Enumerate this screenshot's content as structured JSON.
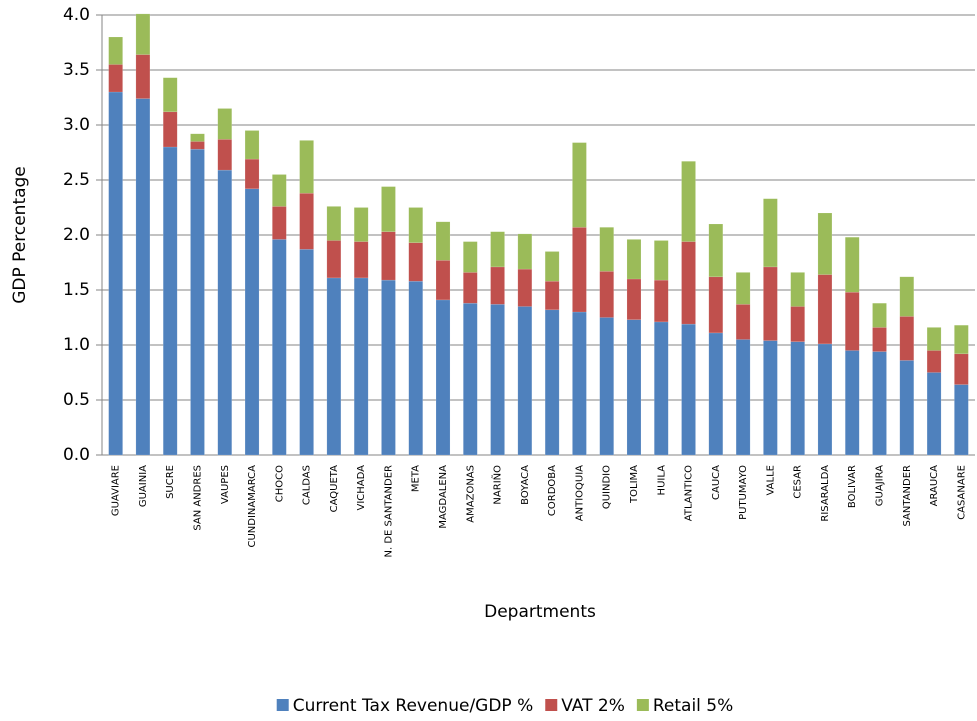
{
  "chart_data": {
    "type": "stacked_bar",
    "x_label": "Departments",
    "y_label": "GDP Percentage",
    "categories": [
      "GUAVIARE",
      "GUAINIA",
      "SUCRE",
      "SAN ANDRES",
      "VAUPES",
      "CUNDINAMARCA",
      "CHOCO",
      "CALDAS",
      "CAQUETA",
      "VICHADA",
      "N. DE SANTANDER",
      "META",
      "MAGDALENA",
      "AMAZONAS",
      "NARIÑO",
      "BOYACA",
      "CORDOBA",
      "ANTIOQUIA",
      "QUINDIO",
      "TOLIMA",
      "HUILA",
      "ATLANTICO",
      "CAUCA",
      "PUTUMAYO",
      "VALLE",
      "CESAR",
      "RISARALDA",
      "BOLIVAR",
      "GUAJIRA",
      "SANTANDER",
      "ARAUCA",
      "CASANARE"
    ],
    "series": [
      {
        "name": "Current Tax Revenue/GDP %",
        "color": "#4f81bd",
        "values": [
          3.3,
          3.24,
          2.8,
          2.78,
          2.59,
          2.42,
          1.96,
          1.87,
          1.61,
          1.61,
          1.59,
          1.58,
          1.41,
          1.38,
          1.37,
          1.35,
          1.32,
          1.3,
          1.25,
          1.23,
          1.21,
          1.19,
          1.11,
          1.05,
          1.04,
          1.03,
          1.01,
          0.95,
          0.94,
          0.86,
          0.75,
          0.64
        ]
      },
      {
        "name": "VAT 2%",
        "color": "#c0504d",
        "values": [
          0.25,
          0.4,
          0.32,
          0.07,
          0.28,
          0.27,
          0.3,
          0.51,
          0.34,
          0.33,
          0.44,
          0.35,
          0.36,
          0.28,
          0.34,
          0.34,
          0.26,
          0.77,
          0.42,
          0.37,
          0.38,
          0.75,
          0.51,
          0.32,
          0.67,
          0.32,
          0.63,
          0.53,
          0.22,
          0.4,
          0.2,
          0.28
        ]
      },
      {
        "name": "Retail 5%",
        "color": "#9bbb59",
        "values": [
          0.25,
          0.37,
          0.31,
          0.07,
          0.28,
          0.26,
          0.29,
          0.48,
          0.31,
          0.31,
          0.41,
          0.32,
          0.35,
          0.28,
          0.32,
          0.32,
          0.27,
          0.77,
          0.4,
          0.36,
          0.36,
          0.73,
          0.48,
          0.29,
          0.62,
          0.31,
          0.56,
          0.5,
          0.22,
          0.36,
          0.21,
          0.26
        ]
      }
    ],
    "ylim": [
      0,
      4
    ],
    "yticks": [
      {
        "value": 0,
        "label": "0.0"
      },
      0.5,
      {
        "value": 1,
        "label": "1.0"
      },
      1.5,
      {
        "value": 2,
        "label": "2.0"
      },
      2.5,
      {
        "value": 3,
        "label": "3.0"
      },
      3.5,
      {
        "value": 4,
        "label": "4.0"
      }
    ],
    "legend_position": "bottom"
  }
}
